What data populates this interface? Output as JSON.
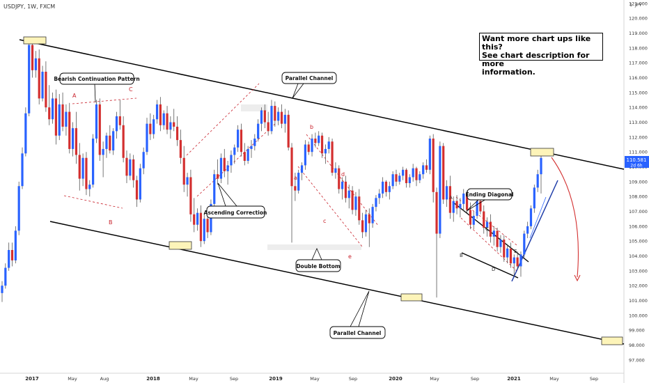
{
  "header": {
    "title": "USDJPY, 1W, FXCM"
  },
  "info_box": {
    "line1": "Want more chart ups like this?",
    "line2": "See chart description for more",
    "line3": "information."
  },
  "price_tag": {
    "price": "110.581",
    "timer": "2d 6h",
    "color": "#2962ff"
  },
  "colors": {
    "up": "#2962ff",
    "down": "#d32f2f",
    "pattern": "#c8202a",
    "highlight": "#fdf4b9"
  },
  "annotations": {
    "bearish_continuation": "Bearish Continuation Pattern",
    "parallel_channel_top": "Parallel Channel",
    "ascending_correction": "Ascending Correction",
    "double_bottom": "Double Bottom",
    "ending_diagonal": "Ending Diagonal",
    "parallel_channel_bottom": "Parallel Channel"
  },
  "wave_letters": {
    "a1": "A",
    "b1": "B",
    "c1": "C",
    "a2": "a",
    "b2": "b",
    "c2": "c",
    "d2": "d",
    "e2": "e",
    "ed_a": "A",
    "ed_b": "B",
    "ed_c": "C",
    "ed_d": "D",
    "ed_e": "E"
  },
  "chart_data": {
    "type": "candlestick",
    "title": "USDJPY, 1W, FXCM",
    "currency": "JPY",
    "y_ticks": [
      "121.000",
      "120.000",
      "119.000",
      "118.000",
      "117.000",
      "116.000",
      "115.000",
      "114.000",
      "113.000",
      "112.000",
      "111.000",
      "110.000",
      "109.000",
      "108.000",
      "107.000",
      "106.000",
      "105.000",
      "104.000",
      "103.000",
      "102.000",
      "101.000",
      "100.000",
      "99.000",
      "98.000",
      "97.000"
    ],
    "ylim": [
      96.3,
      121.4
    ],
    "x_ticks": [
      "2017",
      "May",
      "Aug",
      "2018",
      "May",
      "Sep",
      "2019",
      "May",
      "Sep",
      "2020",
      "May",
      "Sep",
      "2021",
      "May",
      "Sep"
    ],
    "bold_x_ticks": [
      "2017",
      "2018",
      "2019",
      "2020",
      "2021"
    ],
    "current_price": 110.581,
    "series": [
      {
        "name": "USDJPY",
        "candles": [
          [
            101.5,
            102.3,
            100.9,
            102.0
          ],
          [
            102.0,
            103.5,
            101.8,
            103.2
          ],
          [
            103.2,
            104.9,
            103.0,
            104.4
          ],
          [
            104.4,
            104.9,
            103.3,
            103.7
          ],
          [
            103.7,
            106.0,
            103.5,
            105.7
          ],
          [
            105.7,
            109.0,
            105.4,
            108.7
          ],
          [
            108.7,
            111.3,
            108.5,
            110.9
          ],
          [
            110.9,
            114.0,
            110.7,
            113.6
          ],
          [
            113.6,
            118.7,
            113.4,
            118.2
          ],
          [
            118.2,
            118.6,
            116.0,
            116.5
          ],
          [
            116.5,
            117.8,
            116.0,
            117.3
          ],
          [
            117.3,
            117.9,
            114.2,
            114.6
          ],
          [
            114.6,
            116.8,
            114.4,
            116.4
          ],
          [
            116.4,
            117.1,
            113.7,
            114.0
          ],
          [
            114.0,
            115.5,
            112.8,
            113.2
          ],
          [
            113.2,
            115.0,
            112.9,
            114.6
          ],
          [
            114.6,
            115.2,
            111.5,
            112.1
          ],
          [
            112.1,
            114.9,
            111.8,
            114.2
          ],
          [
            114.2,
            115.0,
            112.4,
            112.7
          ],
          [
            112.7,
            114.2,
            112.1,
            113.7
          ],
          [
            113.7,
            114.3,
            110.9,
            111.2
          ],
          [
            111.2,
            113.0,
            110.7,
            112.6
          ],
          [
            112.6,
            113.7,
            110.2,
            110.8
          ],
          [
            110.8,
            111.6,
            108.4,
            109.2
          ],
          [
            109.2,
            110.9,
            108.7,
            110.6
          ],
          [
            110.6,
            111.0,
            108.1,
            108.5
          ],
          [
            108.5,
            109.1,
            108.0,
            108.8
          ],
          [
            108.8,
            112.2,
            108.6,
            111.9
          ],
          [
            111.9,
            114.5,
            111.6,
            114.2
          ],
          [
            114.2,
            114.6,
            110.4,
            110.8
          ],
          [
            110.8,
            111.7,
            109.3,
            111.2
          ],
          [
            111.2,
            112.3,
            110.6,
            112.1
          ],
          [
            112.1,
            112.8,
            110.9,
            111.1
          ],
          [
            111.1,
            112.6,
            110.8,
            112.4
          ],
          [
            112.4,
            113.7,
            111.9,
            113.4
          ],
          [
            113.4,
            114.5,
            112.5,
            112.8
          ],
          [
            112.8,
            113.4,
            110.3,
            110.6
          ],
          [
            110.6,
            111.1,
            108.9,
            109.4
          ],
          [
            109.4,
            110.9,
            109.1,
            110.5
          ],
          [
            110.5,
            110.8,
            108.6,
            109.1
          ],
          [
            109.1,
            109.4,
            107.3,
            107.8
          ],
          [
            107.8,
            110.2,
            107.6,
            109.9
          ],
          [
            109.9,
            111.3,
            109.5,
            111.0
          ],
          [
            111.0,
            113.3,
            110.8,
            112.9
          ],
          [
            112.9,
            113.6,
            111.8,
            112.2
          ],
          [
            112.2,
            113.5,
            111.9,
            113.2
          ],
          [
            113.2,
            114.5,
            112.9,
            114.2
          ],
          [
            114.2,
            114.7,
            112.4,
            112.8
          ],
          [
            112.8,
            113.8,
            112.5,
            113.6
          ],
          [
            113.6,
            114.1,
            112.2,
            112.5
          ],
          [
            112.5,
            113.4,
            111.9,
            113.0
          ],
          [
            113.0,
            113.9,
            112.4,
            112.7
          ],
          [
            112.7,
            113.4,
            111.4,
            111.8
          ],
          [
            111.8,
            112.5,
            110.2,
            110.6
          ],
          [
            110.6,
            111.4,
            108.3,
            108.8
          ],
          [
            108.8,
            109.6,
            108.0,
            109.3
          ],
          [
            109.3,
            109.8,
            106.3,
            106.8
          ],
          [
            106.8,
            107.9,
            105.6,
            106.1
          ],
          [
            106.1,
            107.2,
            105.7,
            106.9
          ],
          [
            106.9,
            107.4,
            104.6,
            105.0
          ],
          [
            105.0,
            106.9,
            104.8,
            106.5
          ],
          [
            106.5,
            107.0,
            105.2,
            105.6
          ],
          [
            105.6,
            107.8,
            105.4,
            107.5
          ],
          [
            107.5,
            109.8,
            107.2,
            109.5
          ],
          [
            109.5,
            110.5,
            108.8,
            109.2
          ],
          [
            109.2,
            110.9,
            108.9,
            110.6
          ],
          [
            110.6,
            111.2,
            109.3,
            109.7
          ],
          [
            109.7,
            110.4,
            108.8,
            110.1
          ],
          [
            110.1,
            111.1,
            109.6,
            110.8
          ],
          [
            110.8,
            111.5,
            110.2,
            111.3
          ],
          [
            111.3,
            112.8,
            111.0,
            112.5
          ],
          [
            112.5,
            112.9,
            110.7,
            111.0
          ],
          [
            111.0,
            111.6,
            110.1,
            110.4
          ],
          [
            110.4,
            111.4,
            110.2,
            111.2
          ],
          [
            111.2,
            111.8,
            110.6,
            111.4
          ],
          [
            111.4,
            112.2,
            111.1,
            111.9
          ],
          [
            111.9,
            113.2,
            111.7,
            112.9
          ],
          [
            112.9,
            114.0,
            112.4,
            113.8
          ],
          [
            113.8,
            114.2,
            112.6,
            113.0
          ],
          [
            113.0,
            113.7,
            112.1,
            112.4
          ],
          [
            112.4,
            114.5,
            112.2,
            114.1
          ],
          [
            114.1,
            114.4,
            112.7,
            113.1
          ],
          [
            113.1,
            114.0,
            112.8,
            113.7
          ],
          [
            113.7,
            114.2,
            112.6,
            112.9
          ],
          [
            112.9,
            113.9,
            112.3,
            113.5
          ],
          [
            113.5,
            113.8,
            111.1,
            111.3
          ],
          [
            111.3,
            111.6,
            104.9,
            108.7
          ],
          [
            108.7,
            109.6,
            107.7,
            108.4
          ],
          [
            108.4,
            109.8,
            108.2,
            109.6
          ],
          [
            109.6,
            110.3,
            109.1,
            110.1
          ],
          [
            110.1,
            111.8,
            109.8,
            111.5
          ],
          [
            111.5,
            111.7,
            110.8,
            111.0
          ],
          [
            111.0,
            112.2,
            110.7,
            111.9
          ],
          [
            111.9,
            112.3,
            111.3,
            111.6
          ],
          [
            111.6,
            112.4,
            111.4,
            112.1
          ],
          [
            112.1,
            112.3,
            110.6,
            110.9
          ],
          [
            110.9,
            111.5,
            110.2,
            111.2
          ],
          [
            111.2,
            112.0,
            110.9,
            111.7
          ],
          [
            111.7,
            111.9,
            109.4,
            109.6
          ],
          [
            109.6,
            110.3,
            109.2,
            109.9
          ],
          [
            109.9,
            110.1,
            108.2,
            108.5
          ],
          [
            108.5,
            109.3,
            107.8,
            109.0
          ],
          [
            109.0,
            109.4,
            107.6,
            107.9
          ],
          [
            107.9,
            108.8,
            107.2,
            108.4
          ],
          [
            108.4,
            108.7,
            106.8,
            107.1
          ],
          [
            107.1,
            108.3,
            106.7,
            108.0
          ],
          [
            108.0,
            108.5,
            106.1,
            106.4
          ],
          [
            106.4,
            106.9,
            105.2,
            105.6
          ],
          [
            105.6,
            107.1,
            105.3,
            106.8
          ],
          [
            106.8,
            107.2,
            104.6,
            106.2
          ],
          [
            106.2,
            107.5,
            105.9,
            107.3
          ],
          [
            107.3,
            108.1,
            107.0,
            107.9
          ],
          [
            107.9,
            108.5,
            107.5,
            108.2
          ],
          [
            108.2,
            109.3,
            107.9,
            109.0
          ],
          [
            109.0,
            109.1,
            108.0,
            108.3
          ],
          [
            108.3,
            109.0,
            107.8,
            108.7
          ],
          [
            108.7,
            109.7,
            108.5,
            109.5
          ],
          [
            109.5,
            109.8,
            108.7,
            109.0
          ],
          [
            109.0,
            109.6,
            108.8,
            109.4
          ],
          [
            109.4,
            110.0,
            109.1,
            109.8
          ],
          [
            109.8,
            109.9,
            108.6,
            108.9
          ],
          [
            108.9,
            109.5,
            108.6,
            109.3
          ],
          [
            109.3,
            110.2,
            109.0,
            109.9
          ],
          [
            109.9,
            110.0,
            108.7,
            109.1
          ],
          [
            109.1,
            109.7,
            108.9,
            109.5
          ],
          [
            109.5,
            110.3,
            109.2,
            110.1
          ],
          [
            110.1,
            110.5,
            109.6,
            109.8
          ],
          [
            109.8,
            112.1,
            109.5,
            111.9
          ],
          [
            111.9,
            112.2,
            107.6,
            108.3
          ],
          [
            108.3,
            108.6,
            101.2,
            105.5
          ],
          [
            105.5,
            111.7,
            105.2,
            111.4
          ],
          [
            111.4,
            111.6,
            107.5,
            107.8
          ],
          [
            107.8,
            109.1,
            107.3,
            108.7
          ],
          [
            108.7,
            109.4,
            106.5,
            106.9
          ],
          [
            106.9,
            108.0,
            106.3,
            107.7
          ],
          [
            107.7,
            108.1,
            106.8,
            107.2
          ],
          [
            107.2,
            107.9,
            106.6,
            107.5
          ],
          [
            107.5,
            108.5,
            107.0,
            108.2
          ],
          [
            108.2,
            108.4,
            106.9,
            107.1
          ],
          [
            107.1,
            107.6,
            105.8,
            106.1
          ],
          [
            106.1,
            107.0,
            105.8,
            106.7
          ],
          [
            106.7,
            107.9,
            106.5,
            107.7
          ],
          [
            107.7,
            108.1,
            106.8,
            107.0
          ],
          [
            107.0,
            107.4,
            105.5,
            105.9
          ],
          [
            105.9,
            106.6,
            105.3,
            106.3
          ],
          [
            106.3,
            106.8,
            104.9,
            105.3
          ],
          [
            105.3,
            106.0,
            104.7,
            105.7
          ],
          [
            105.7,
            105.9,
            104.3,
            104.6
          ],
          [
            104.6,
            105.4,
            104.2,
            105.1
          ],
          [
            105.1,
            105.4,
            103.6,
            103.9
          ],
          [
            103.9,
            104.8,
            103.5,
            104.5
          ],
          [
            104.5,
            104.9,
            103.2,
            103.5
          ],
          [
            103.5,
            104.1,
            102.7,
            103.9
          ],
          [
            103.9,
            104.3,
            103.1,
            103.3
          ],
          [
            103.3,
            104.3,
            102.6,
            104.1
          ],
          [
            104.1,
            105.7,
            103.9,
            105.5
          ],
          [
            105.5,
            106.3,
            105.2,
            106.0
          ],
          [
            106.0,
            107.4,
            105.8,
            107.2
          ],
          [
            107.2,
            108.8,
            106.9,
            108.6
          ],
          [
            108.6,
            109.8,
            108.3,
            109.5
          ],
          [
            109.5,
            110.9,
            108.2,
            110.6
          ]
        ]
      }
    ],
    "annotations": [
      "Bearish Continuation Pattern",
      "Parallel Channel",
      "Ascending Correction",
      "Double Bottom",
      "Ending Diagonal",
      "Parallel Channel"
    ]
  }
}
